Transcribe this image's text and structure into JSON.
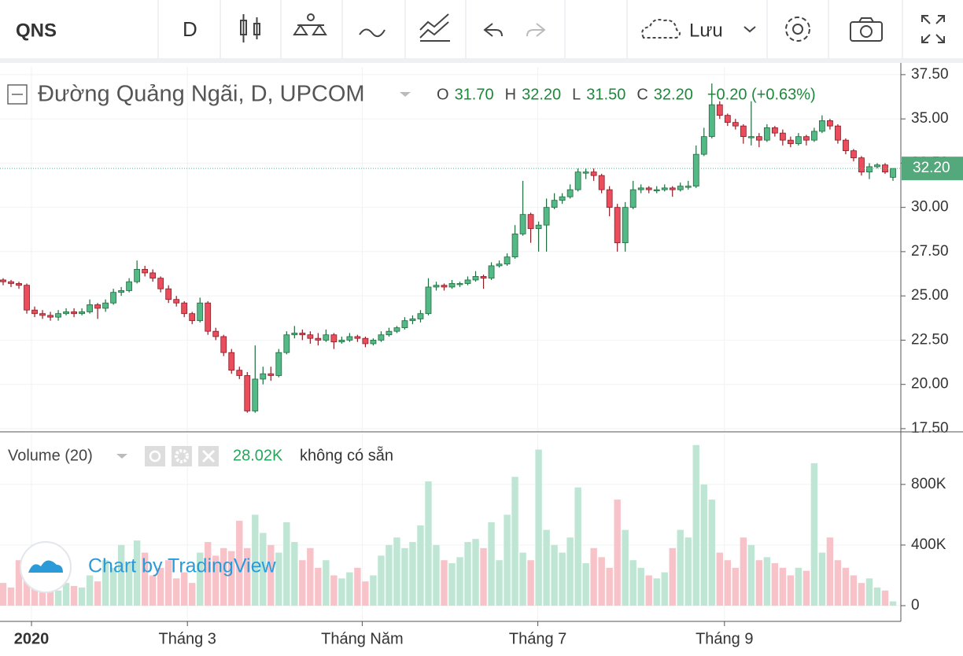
{
  "toolbar": {
    "symbol": "QNS",
    "interval": "D",
    "save": "Lưu"
  },
  "chart_data": {
    "type": "candlestick",
    "title": "Đường Quảng Ngãi, D, UPCOM",
    "ohlc": [
      {
        "label": "O",
        "value": "31.70"
      },
      {
        "label": "H",
        "value": "32.20"
      },
      {
        "label": "L",
        "value": "31.50"
      },
      {
        "label": "C",
        "value": "32.20"
      }
    ],
    "change": "+0.20 (+0.63%)",
    "up_color": "#53b987",
    "down_color": "#eb4d5c",
    "volume_up_color": "#bfe6d4",
    "volume_down_color": "#f7c3c9",
    "grid": true,
    "candles": [
      [
        25.9,
        26.0,
        25.6,
        25.8
      ],
      [
        25.8,
        25.9,
        25.5,
        25.7
      ],
      [
        25.7,
        25.8,
        25.4,
        25.6
      ],
      [
        25.6,
        25.7,
        24.0,
        24.2
      ],
      [
        24.2,
        24.4,
        23.8,
        24.0
      ],
      [
        24.0,
        24.2,
        23.7,
        23.9
      ],
      [
        23.9,
        24.1,
        23.6,
        23.8
      ],
      [
        23.8,
        24.2,
        23.6,
        24.0
      ],
      [
        24.0,
        24.3,
        23.9,
        24.1
      ],
      [
        24.1,
        24.3,
        23.8,
        24.0
      ],
      [
        24.0,
        24.3,
        23.9,
        24.1
      ],
      [
        24.1,
        24.8,
        24.0,
        24.5
      ],
      [
        24.5,
        24.6,
        23.7,
        24.3
      ],
      [
        24.3,
        24.8,
        24.1,
        24.6
      ],
      [
        24.6,
        25.4,
        24.5,
        25.2
      ],
      [
        25.2,
        25.5,
        25.0,
        25.3
      ],
      [
        25.3,
        26.0,
        25.2,
        25.8
      ],
      [
        25.8,
        27.0,
        25.7,
        26.5
      ],
      [
        26.5,
        26.7,
        26.1,
        26.3
      ],
      [
        26.3,
        26.5,
        25.8,
        26.0
      ],
      [
        26.0,
        26.1,
        25.2,
        25.4
      ],
      [
        25.4,
        25.6,
        24.6,
        24.8
      ],
      [
        24.8,
        25.0,
        24.4,
        24.6
      ],
      [
        24.6,
        24.7,
        23.8,
        24.0
      ],
      [
        24.0,
        24.1,
        23.4,
        23.6
      ],
      [
        23.6,
        24.9,
        23.5,
        24.6
      ],
      [
        24.6,
        24.7,
        22.8,
        23.0
      ],
      [
        23.0,
        23.2,
        22.5,
        22.7
      ],
      [
        22.7,
        22.8,
        21.6,
        21.8
      ],
      [
        21.8,
        22.0,
        20.6,
        20.8
      ],
      [
        20.8,
        21.0,
        20.3,
        20.5
      ],
      [
        20.5,
        20.7,
        18.4,
        18.5
      ],
      [
        18.5,
        22.2,
        18.4,
        20.3
      ],
      [
        20.3,
        21.0,
        20.0,
        20.6
      ],
      [
        20.6,
        21.0,
        20.2,
        20.5
      ],
      [
        20.5,
        22.0,
        20.4,
        21.8
      ],
      [
        21.8,
        23.0,
        21.7,
        22.8
      ],
      [
        22.8,
        23.3,
        22.6,
        22.9
      ],
      [
        22.9,
        23.1,
        22.5,
        22.8
      ],
      [
        22.8,
        23.0,
        22.3,
        22.6
      ],
      [
        22.6,
        22.9,
        22.2,
        22.5
      ],
      [
        22.5,
        23.1,
        22.4,
        22.8
      ],
      [
        22.8,
        22.9,
        22.0,
        22.4
      ],
      [
        22.4,
        22.7,
        22.3,
        22.5
      ],
      [
        22.5,
        22.9,
        22.4,
        22.7
      ],
      [
        22.7,
        22.8,
        22.4,
        22.6
      ],
      [
        22.6,
        22.7,
        22.1,
        22.3
      ],
      [
        22.3,
        22.6,
        22.2,
        22.5
      ],
      [
        22.5,
        23.0,
        22.4,
        22.8
      ],
      [
        22.8,
        23.2,
        22.7,
        23.0
      ],
      [
        23.0,
        23.3,
        22.9,
        23.2
      ],
      [
        23.2,
        23.8,
        23.1,
        23.6
      ],
      [
        23.6,
        23.9,
        23.4,
        23.7
      ],
      [
        23.7,
        24.2,
        23.5,
        24.0
      ],
      [
        24.0,
        26.0,
        23.9,
        25.5
      ],
      [
        25.5,
        25.8,
        25.3,
        25.6
      ],
      [
        25.6,
        25.7,
        25.3,
        25.5
      ],
      [
        25.5,
        25.9,
        25.4,
        25.7
      ],
      [
        25.7,
        25.8,
        25.5,
        25.7
      ],
      [
        25.7,
        26.1,
        25.6,
        25.9
      ],
      [
        25.9,
        26.4,
        25.8,
        26.1
      ],
      [
        26.1,
        26.2,
        25.4,
        26.0
      ],
      [
        26.0,
        26.9,
        25.9,
        26.7
      ],
      [
        26.7,
        27.0,
        26.6,
        26.8
      ],
      [
        26.8,
        27.4,
        26.7,
        27.2
      ],
      [
        27.2,
        29.0,
        27.1,
        28.5
      ],
      [
        28.5,
        31.5,
        28.4,
        29.6
      ],
      [
        29.6,
        29.7,
        28.0,
        28.8
      ],
      [
        28.8,
        29.2,
        27.5,
        29.0
      ],
      [
        29.0,
        30.5,
        27.5,
        30.0
      ],
      [
        30.0,
        30.8,
        29.9,
        30.4
      ],
      [
        30.4,
        30.8,
        30.2,
        30.6
      ],
      [
        30.6,
        31.3,
        30.5,
        31.0
      ],
      [
        31.0,
        32.2,
        30.9,
        32.0
      ],
      [
        32.0,
        32.2,
        31.6,
        32.0
      ],
      [
        32.0,
        32.2,
        31.5,
        31.8
      ],
      [
        31.8,
        31.9,
        30.8,
        31.0
      ],
      [
        31.0,
        31.2,
        29.5,
        30.0
      ],
      [
        30.0,
        30.2,
        27.5,
        28.0
      ],
      [
        28.0,
        30.3,
        27.5,
        30.0
      ],
      [
        30.0,
        31.5,
        29.9,
        31.0
      ],
      [
        31.0,
        31.3,
        30.8,
        31.1
      ],
      [
        31.1,
        31.2,
        30.8,
        31.0
      ],
      [
        31.0,
        31.2,
        30.8,
        31.0
      ],
      [
        31.0,
        31.3,
        30.9,
        31.1
      ],
      [
        31.1,
        31.2,
        30.6,
        31.0
      ],
      [
        31.0,
        31.4,
        30.9,
        31.2
      ],
      [
        31.2,
        31.5,
        31.0,
        31.2
      ],
      [
        31.2,
        33.5,
        31.1,
        33.0
      ],
      [
        33.0,
        34.5,
        32.9,
        34.0
      ],
      [
        34.0,
        37.0,
        33.9,
        35.8
      ],
      [
        35.8,
        36.0,
        35.0,
        35.2
      ],
      [
        35.2,
        35.3,
        34.6,
        34.8
      ],
      [
        34.8,
        35.0,
        34.4,
        34.6
      ],
      [
        34.6,
        34.7,
        33.6,
        34.0
      ],
      [
        34.0,
        36.0,
        33.5,
        34.0
      ],
      [
        34.0,
        34.2,
        33.4,
        33.8
      ],
      [
        33.8,
        34.7,
        33.7,
        34.5
      ],
      [
        34.5,
        34.6,
        34.0,
        34.2
      ],
      [
        34.2,
        34.4,
        33.5,
        33.8
      ],
      [
        33.8,
        34.0,
        33.4,
        33.6
      ],
      [
        33.6,
        34.2,
        33.5,
        34.0
      ],
      [
        34.0,
        34.1,
        33.5,
        33.8
      ],
      [
        33.8,
        34.5,
        33.7,
        34.3
      ],
      [
        34.3,
        35.2,
        34.2,
        34.9
      ],
      [
        34.9,
        35.0,
        34.4,
        34.6
      ],
      [
        34.6,
        34.7,
        33.6,
        33.8
      ],
      [
        33.8,
        33.9,
        33.0,
        33.2
      ],
      [
        33.2,
        33.3,
        32.6,
        32.8
      ],
      [
        32.8,
        32.9,
        31.8,
        32.0
      ],
      [
        32.0,
        32.5,
        31.6,
        32.3
      ],
      [
        32.3,
        32.5,
        32.2,
        32.4
      ],
      [
        32.4,
        32.5,
        31.9,
        32.0
      ],
      [
        31.7,
        32.2,
        31.5,
        32.2
      ]
    ],
    "volumes": [
      150000,
      120000,
      300000,
      250000,
      400000,
      180000,
      120000,
      100000,
      150000,
      130000,
      120000,
      200000,
      160000,
      300000,
      250000,
      400000,
      280000,
      430000,
      350000,
      200000,
      250000,
      300000,
      180000,
      220000,
      150000,
      350000,
      420000,
      330000,
      380000,
      360000,
      560000,
      380000,
      600000,
      480000,
      400000,
      350000,
      550000,
      420000,
      300000,
      380000,
      250000,
      300000,
      200000,
      180000,
      220000,
      250000,
      160000,
      200000,
      330000,
      400000,
      450000,
      380000,
      420000,
      530000,
      820000,
      400000,
      300000,
      280000,
      320000,
      420000,
      440000,
      380000,
      550000,
      300000,
      600000,
      850000,
      350000,
      300000,
      1030000,
      500000,
      400000,
      350000,
      450000,
      780000,
      280000,
      380000,
      320000,
      250000,
      700000,
      500000,
      300000,
      250000,
      200000,
      180000,
      220000,
      380000,
      500000,
      450000,
      1060000,
      800000,
      700000,
      350000,
      300000,
      250000,
      450000,
      400000,
      300000,
      320000,
      280000,
      250000,
      200000,
      250000,
      230000,
      940000,
      350000,
      450000,
      300000,
      250000,
      200000,
      150000,
      180000,
      120000,
      100000,
      28020
    ],
    "last_price": {
      "value": 32.2,
      "label": "32.20"
    },
    "xlim": [
      -0.4,
      114
    ],
    "xticks": [
      {
        "value": 3.6,
        "label": "2020"
      },
      {
        "value": 23.4,
        "label": "Tháng 3"
      },
      {
        "value": 45.6,
        "label": "Tháng Năm"
      },
      {
        "value": 67.9,
        "label": "Tháng 7"
      },
      {
        "value": 91.6,
        "label": "Tháng 9"
      }
    ],
    "ylim": [
      17.32,
      37.94
    ],
    "yticks": [
      {
        "value": 17.5,
        "label": "17.50"
      },
      {
        "value": 20,
        "label": "20.00"
      },
      {
        "value": 22.5,
        "label": "22.50"
      },
      {
        "value": 25,
        "label": "25.00"
      },
      {
        "value": 27.5,
        "label": "27.50"
      },
      {
        "value": 30,
        "label": "30.00"
      },
      {
        "value": 32.5,
        "label": "32.50"
      },
      {
        "value": 35,
        "label": "35.00"
      },
      {
        "value": 37.5,
        "label": "37.50"
      }
    ],
    "volume_title": "Volume (20)",
    "volume_value": "28.02K",
    "volume_status": "không có sẵn",
    "vlim": [
      0,
      1090000
    ],
    "vticks": [
      0,
      {
        "value": 400000,
        "label": "400K"
      },
      {
        "value": 800000,
        "label": "800K"
      }
    ],
    "watermark": "Chart by TradingView"
  }
}
